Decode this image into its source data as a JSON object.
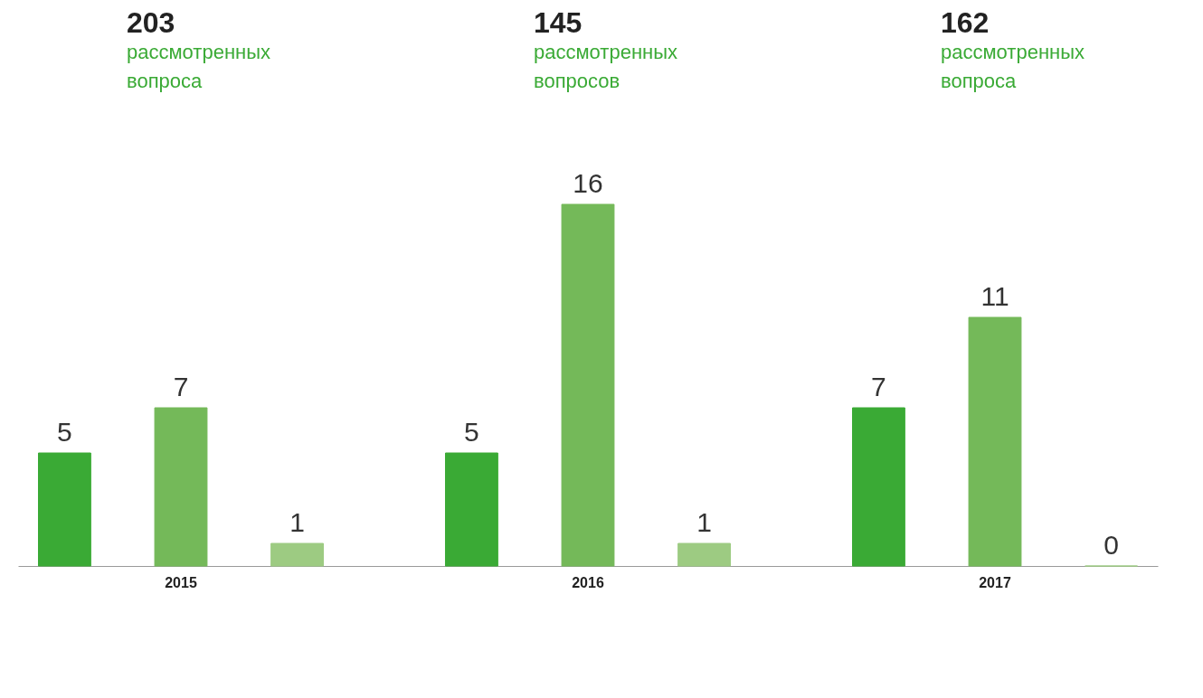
{
  "chart_data": {
    "type": "bar",
    "categories": [
      "2015",
      "2016",
      "2017"
    ],
    "series": [
      {
        "color": "#3aaa35",
        "values": [
          5,
          5,
          7
        ]
      },
      {
        "color": "#74b959",
        "values": [
          7,
          16,
          11
        ]
      },
      {
        "color": "#9dcb82",
        "values": [
          1,
          1,
          0
        ]
      }
    ],
    "data_labels": true,
    "tick_labels": "x",
    "grid": false,
    "legend": false,
    "annotations": [
      "203\nрассмотренных\nвопроса",
      "145\nрассмотренных\nвопросов",
      "162\nрассмотренных\nвопроса"
    ]
  }
}
